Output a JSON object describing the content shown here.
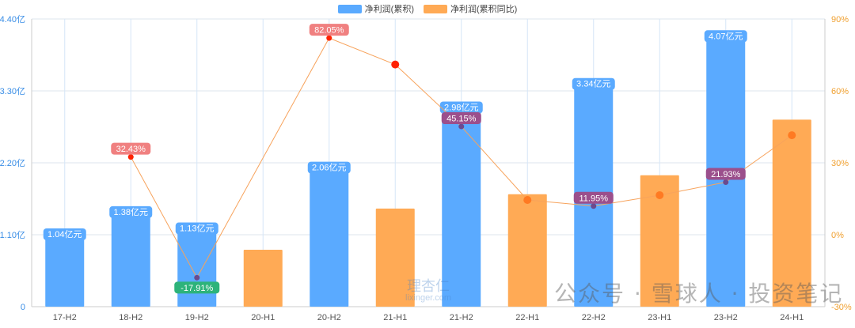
{
  "legend": {
    "net_profit_label": "净利润(累积)",
    "growth_label": "净利润(累积同比)"
  },
  "colors": {
    "bar_blue": "#5aaaff",
    "bar_orange": "#ffaa55",
    "line": "#f7a35c",
    "left_axis": "#3a8ee6",
    "right_axis": "#f0a030",
    "label_blue": "#5aaaff",
    "label_red": "#f08080",
    "label_purple": "#9b4f8c",
    "label_green": "#2db37a",
    "point_red": "#ff2200",
    "point_purple": "#6a4a8f",
    "point_orange": "#ff7a22"
  },
  "chart_data": {
    "type": "bar+line",
    "categories": [
      "17-H2",
      "18-H2",
      "19-H2",
      "20-H1",
      "20-H2",
      "21-H1",
      "21-H2",
      "22-H1",
      "22-H2",
      "23-H1",
      "23-H2",
      "24-H1"
    ],
    "left_axis": {
      "ticks": [
        "0",
        "1.10亿",
        "2.20亿",
        "3.30亿",
        "4.40亿"
      ],
      "range": [
        0,
        4.4
      ]
    },
    "right_axis": {
      "ticks": [
        "-30%",
        "0%",
        "30%",
        "60%",
        "90%"
      ],
      "range": [
        -30,
        90
      ]
    },
    "series": [
      {
        "name": "净利润(累积)",
        "kind": "bar",
        "values": [
          1.04,
          1.38,
          1.13,
          0.87,
          2.06,
          1.5,
          2.98,
          1.72,
          3.34,
          2.01,
          4.07,
          2.86
        ],
        "bar_colors": [
          "blue",
          "blue",
          "blue",
          "orange",
          "blue",
          "orange",
          "blue",
          "orange",
          "blue",
          "orange",
          "blue",
          "orange"
        ],
        "labels": [
          "1.04亿元",
          "1.38亿元",
          "1.13亿元",
          "",
          "2.06亿元",
          "",
          "2.98亿元",
          "",
          "3.34亿元",
          "",
          "4.07亿元",
          ""
        ]
      },
      {
        "name": "净利润(累积同比)",
        "kind": "line",
        "values": [
          null,
          32.43,
          -17.91,
          null,
          82.05,
          71.0,
          45.15,
          14.5,
          11.95,
          16.5,
          21.93,
          41.5
        ],
        "labels": [
          "",
          "32.43%",
          "-17.91%",
          "",
          "82.05%",
          "",
          "45.15%",
          "",
          "11.95%",
          "",
          "21.93%",
          ""
        ],
        "label_colors": [
          "",
          "red",
          "green",
          "",
          "red",
          "",
          "purple",
          "",
          "purple",
          "",
          "purple",
          ""
        ],
        "point_colors": [
          "",
          "red",
          "purple",
          "",
          "red",
          "red",
          "purple",
          "orange",
          "purple",
          "orange",
          "purple",
          "orange"
        ]
      }
    ],
    "grid": true
  },
  "watermarks": {
    "center_logo_top": "理杏仁",
    "center_logo_bottom": "lixinger.com",
    "bottom_right": "公众号 · 雪球人 · 投资笔记"
  }
}
